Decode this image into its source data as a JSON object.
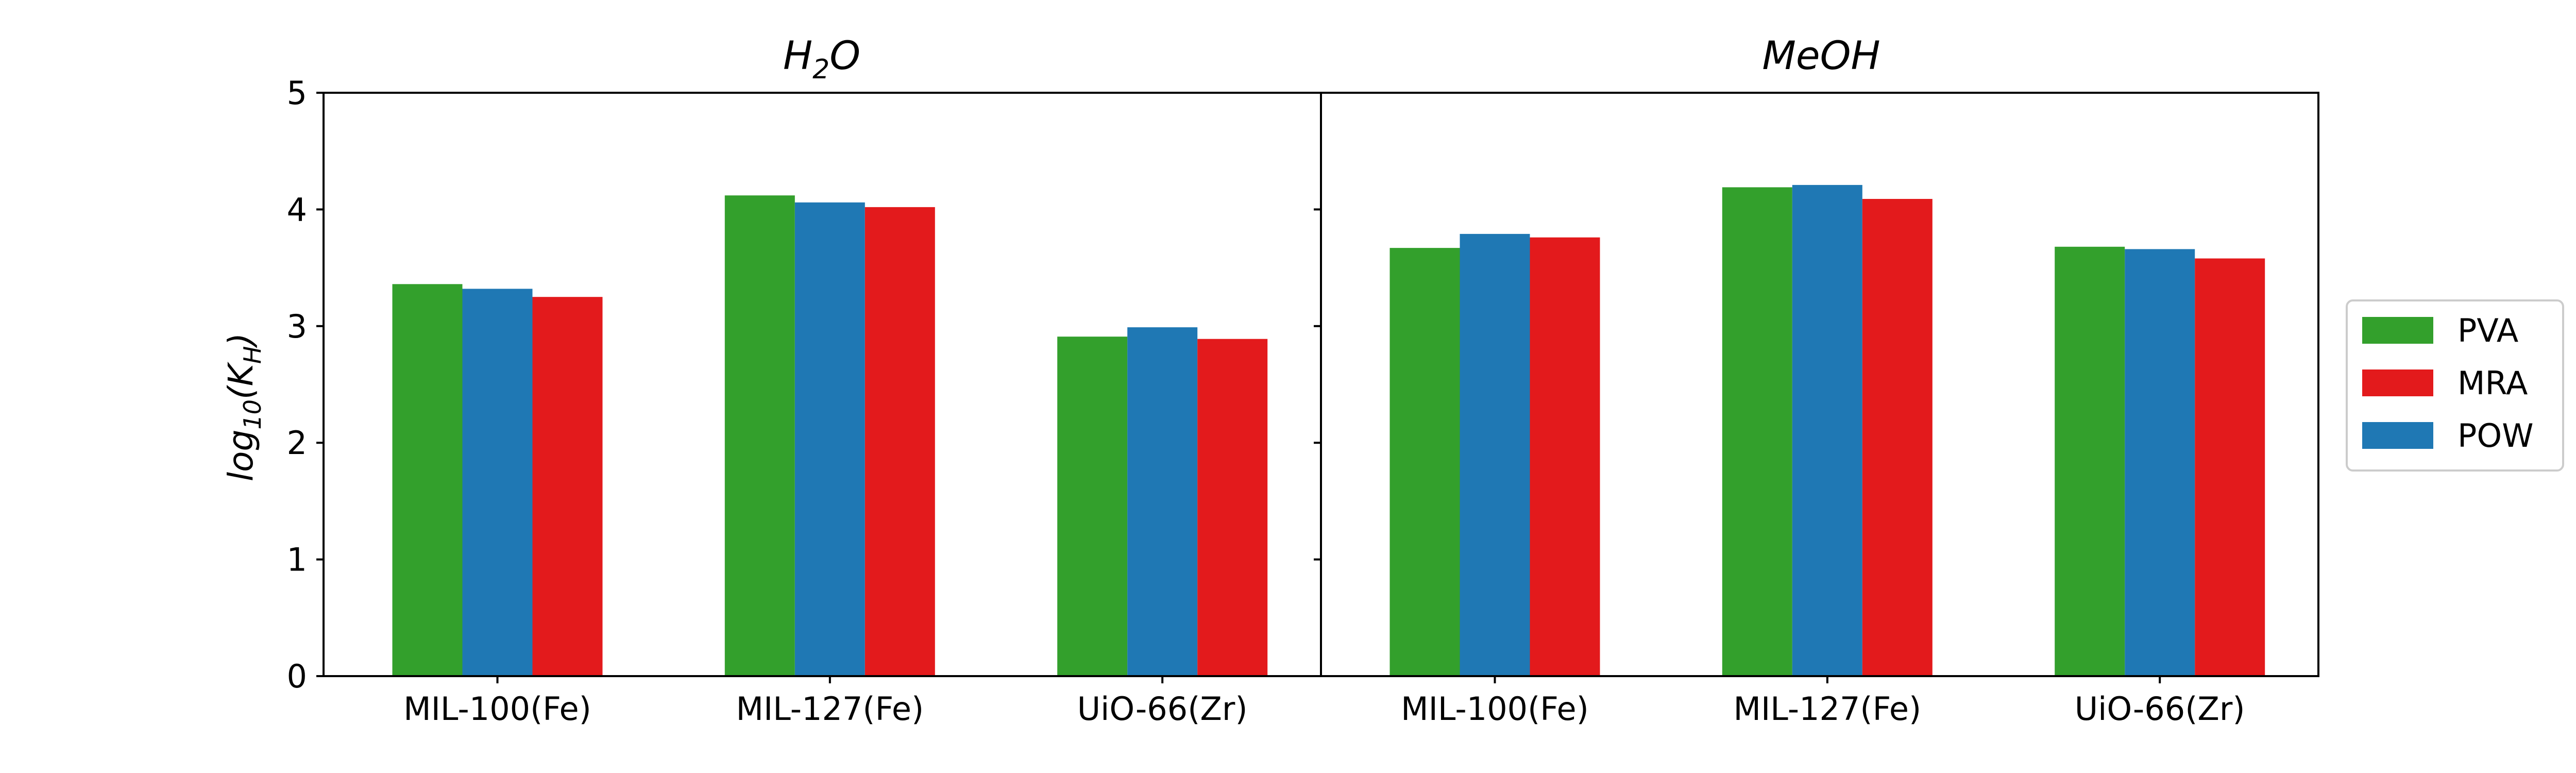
{
  "chart_data": {
    "type": "bar",
    "ylabel": "log10(KH)",
    "ylabel_parts": {
      "base": "log",
      "base_sub": "10",
      "open": "(K",
      "k_sub": "H",
      "close": ")"
    },
    "ylim": [
      0,
      5
    ],
    "yticks": [
      "0",
      "1",
      "2",
      "3",
      "4",
      "5"
    ],
    "legend": {
      "placement": "right",
      "entries": [
        "PVA",
        "MRA",
        "POW"
      ]
    },
    "colors": {
      "PVA": "#33a02c",
      "MRA": "#e31a1c",
      "POW": "#1f78b4"
    },
    "bar_order": [
      "PVA",
      "POW",
      "MRA"
    ],
    "panels": [
      {
        "title": "H2O",
        "title_parts": {
          "main": "H",
          "sub": "2",
          "rest": "O"
        },
        "categories": [
          "MIL-100(Fe)",
          "MIL-127(Fe)",
          "UiO-66(Zr)"
        ],
        "series": [
          {
            "name": "PVA",
            "values": [
              3.36,
              4.12,
              2.91
            ]
          },
          {
            "name": "POW",
            "values": [
              3.32,
              4.06,
              2.99
            ]
          },
          {
            "name": "MRA",
            "values": [
              3.25,
              4.02,
              2.89
            ]
          }
        ]
      },
      {
        "title": "MeOH",
        "categories": [
          "MIL-100(Fe)",
          "MIL-127(Fe)",
          "UiO-66(Zr)"
        ],
        "series": [
          {
            "name": "PVA",
            "values": [
              3.67,
              4.19,
              3.68
            ]
          },
          {
            "name": "POW",
            "values": [
              3.79,
              4.21,
              3.66
            ]
          },
          {
            "name": "MRA",
            "values": [
              3.76,
              4.09,
              3.58
            ]
          }
        ]
      }
    ]
  }
}
